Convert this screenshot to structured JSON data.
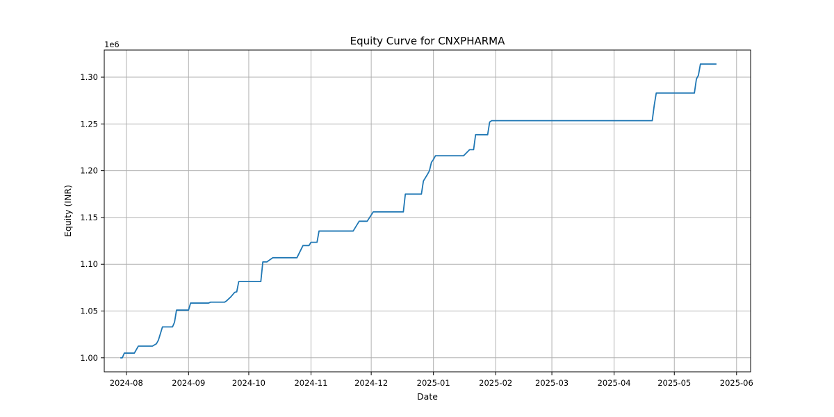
{
  "chart_data": {
    "type": "line",
    "title": "Equity Curve for CNXPHARMA",
    "xlabel": "Date",
    "ylabel": "Equity (INR)",
    "y_offset_label": "1e6",
    "y_scale_factor": 1000000,
    "grid": true,
    "line_color": "#1f77b4",
    "xlim": [
      "2024-07-21",
      "2025-06-08"
    ],
    "ylim": [
      985000,
      1329000
    ],
    "x_ticks": [
      {
        "date": "2024-08-01",
        "label": "2024-08"
      },
      {
        "date": "2024-09-01",
        "label": "2024-09"
      },
      {
        "date": "2024-10-01",
        "label": "2024-10"
      },
      {
        "date": "2024-11-01",
        "label": "2024-11"
      },
      {
        "date": "2024-12-01",
        "label": "2024-12"
      },
      {
        "date": "2025-01-01",
        "label": "2025-01"
      },
      {
        "date": "2025-02-01",
        "label": "2025-02"
      },
      {
        "date": "2025-03-01",
        "label": "2025-03"
      },
      {
        "date": "2025-04-01",
        "label": "2025-04"
      },
      {
        "date": "2025-05-01",
        "label": "2025-05"
      },
      {
        "date": "2025-06-01",
        "label": "2025-06"
      }
    ],
    "y_ticks": [
      {
        "value": 1000000,
        "label": "1.00"
      },
      {
        "value": 1050000,
        "label": "1.05"
      },
      {
        "value": 1100000,
        "label": "1.10"
      },
      {
        "value": 1150000,
        "label": "1.15"
      },
      {
        "value": 1200000,
        "label": "1.20"
      },
      {
        "value": 1250000,
        "label": "1.25"
      },
      {
        "value": 1300000,
        "label": "1.30"
      }
    ],
    "series": [
      {
        "points": [
          [
            "2024-07-29",
            1000000
          ],
          [
            "2024-07-30",
            1000000
          ],
          [
            "2024-07-31",
            1005000
          ],
          [
            "2024-08-05",
            1005000
          ],
          [
            "2024-08-07",
            1012500
          ],
          [
            "2024-08-14",
            1012500
          ],
          [
            "2024-08-16",
            1015000
          ],
          [
            "2024-08-17",
            1019000
          ],
          [
            "2024-08-19",
            1033000
          ],
          [
            "2024-08-24",
            1033000
          ],
          [
            "2024-08-25",
            1038000
          ],
          [
            "2024-08-26",
            1051000
          ],
          [
            "2024-09-01",
            1051000
          ],
          [
            "2024-09-02",
            1058500
          ],
          [
            "2024-09-11",
            1058500
          ],
          [
            "2024-09-12",
            1059500
          ],
          [
            "2024-09-19",
            1059500
          ],
          [
            "2024-09-20",
            1061000
          ],
          [
            "2024-09-22",
            1065000
          ],
          [
            "2024-09-24",
            1070000
          ],
          [
            "2024-09-25",
            1070500
          ],
          [
            "2024-09-26",
            1081500
          ],
          [
            "2024-10-07",
            1081500
          ],
          [
            "2024-10-08",
            1102500
          ],
          [
            "2024-10-10",
            1102500
          ],
          [
            "2024-10-13",
            1107000
          ],
          [
            "2024-10-25",
            1107000
          ],
          [
            "2024-10-28",
            1120000
          ],
          [
            "2024-10-31",
            1120000
          ],
          [
            "2024-11-01",
            1123500
          ],
          [
            "2024-11-04",
            1123500
          ],
          [
            "2024-11-05",
            1135500
          ],
          [
            "2024-11-22",
            1135500
          ],
          [
            "2024-11-25",
            1146000
          ],
          [
            "2024-11-29",
            1146000
          ],
          [
            "2024-12-02",
            1156000
          ],
          [
            "2024-12-17",
            1156000
          ],
          [
            "2024-12-18",
            1175000
          ],
          [
            "2024-12-26",
            1175000
          ],
          [
            "2024-12-27",
            1189000
          ],
          [
            "2024-12-29",
            1196000
          ],
          [
            "2024-12-30",
            1200000
          ],
          [
            "2024-12-31",
            1209000
          ],
          [
            "2025-01-01",
            1212000
          ],
          [
            "2025-01-02",
            1216000
          ],
          [
            "2025-01-16",
            1216000
          ],
          [
            "2025-01-19",
            1222500
          ],
          [
            "2025-01-21",
            1222500
          ],
          [
            "2025-01-22",
            1238500
          ],
          [
            "2025-01-28",
            1238500
          ],
          [
            "2025-01-29",
            1252000
          ],
          [
            "2025-01-30",
            1253500
          ],
          [
            "2025-04-20",
            1253500
          ],
          [
            "2025-04-21",
            1270000
          ],
          [
            "2025-04-22",
            1283000
          ],
          [
            "2025-05-11",
            1283000
          ],
          [
            "2025-05-12",
            1298000
          ],
          [
            "2025-05-13",
            1302000
          ],
          [
            "2025-05-14",
            1314000
          ],
          [
            "2025-05-22",
            1314000
          ]
        ]
      }
    ]
  }
}
